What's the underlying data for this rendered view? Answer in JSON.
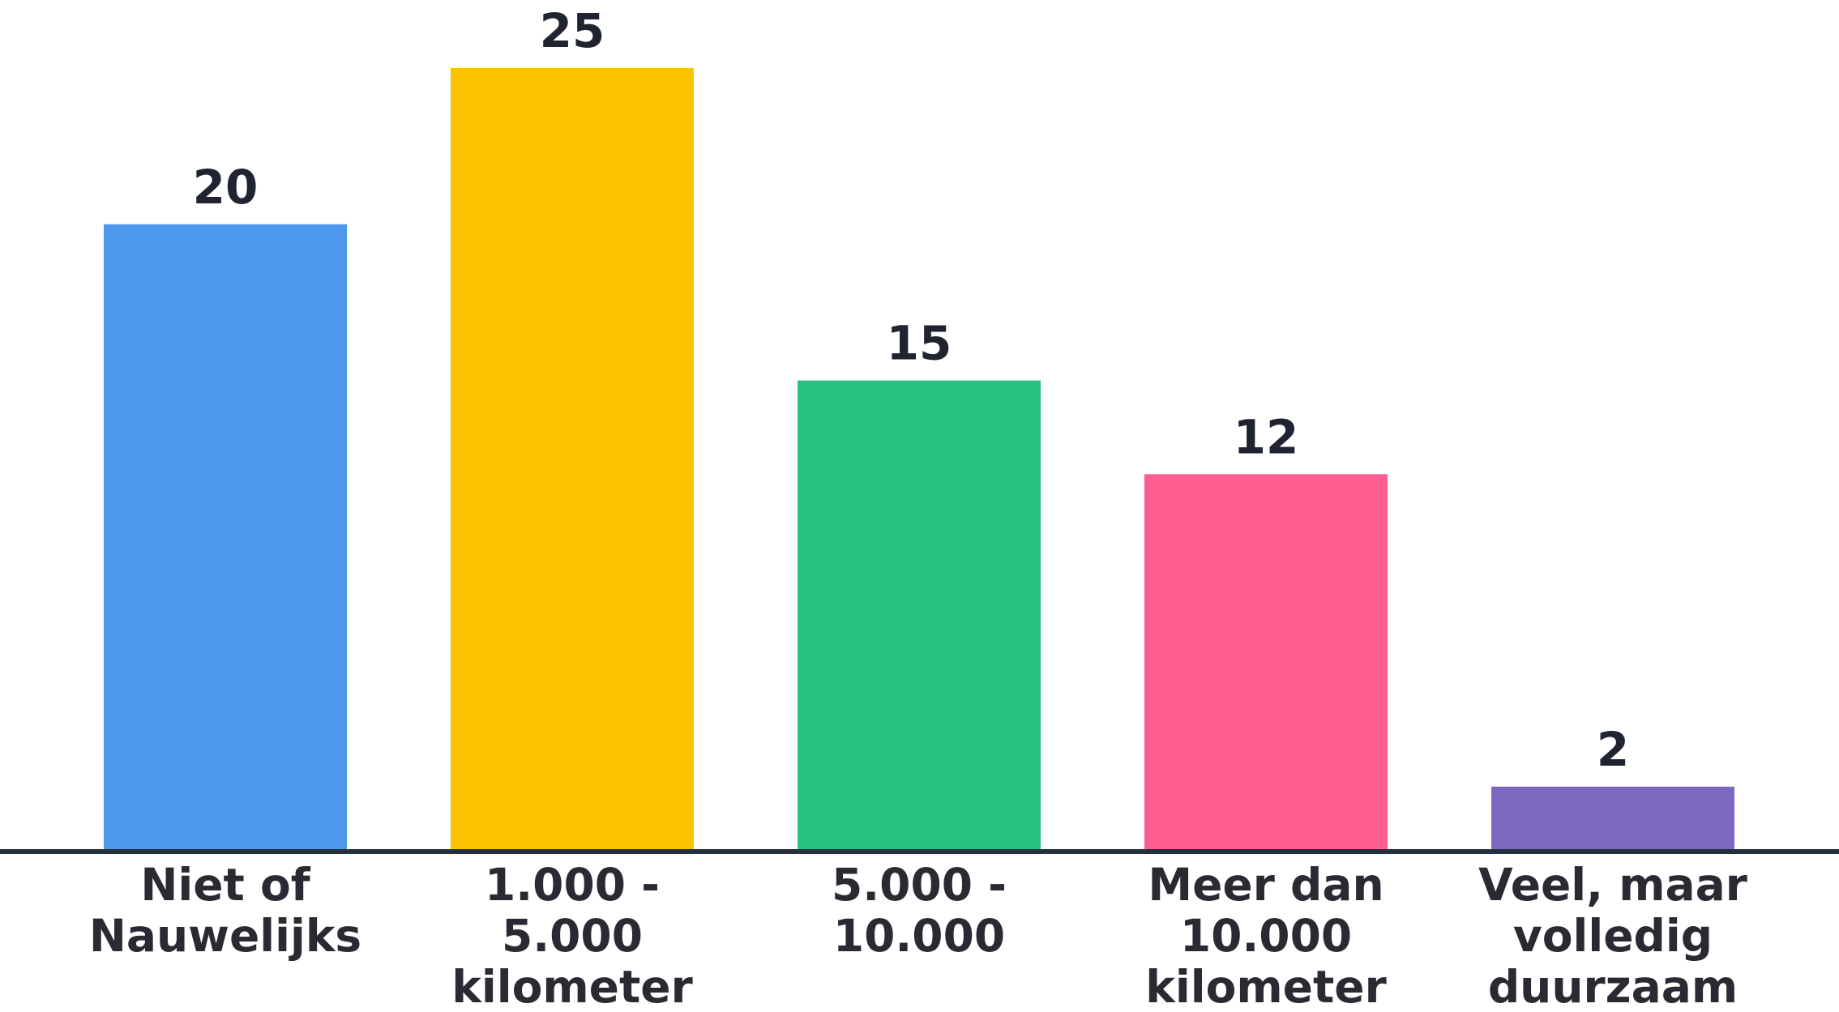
{
  "chart_data": {
    "type": "bar",
    "categories": [
      [
        "Niet of",
        "Nauwelijks"
      ],
      [
        "1.000 -",
        "5.000",
        "kilometer"
      ],
      [
        "5.000 -",
        "10.000"
      ],
      [
        "Meer dan",
        "10.000",
        "kilometer"
      ],
      [
        "Veel, maar",
        "volledig",
        "duurzaam"
      ]
    ],
    "values": [
      20,
      25,
      15,
      12,
      2
    ],
    "colors": [
      "#4d98ec",
      "#fdc300",
      "#27c27e",
      "#ff5d8f",
      "#7c68bf"
    ],
    "ylim": [
      0,
      25
    ],
    "grid": false,
    "legend": "none",
    "axis_color": "#24303b"
  }
}
